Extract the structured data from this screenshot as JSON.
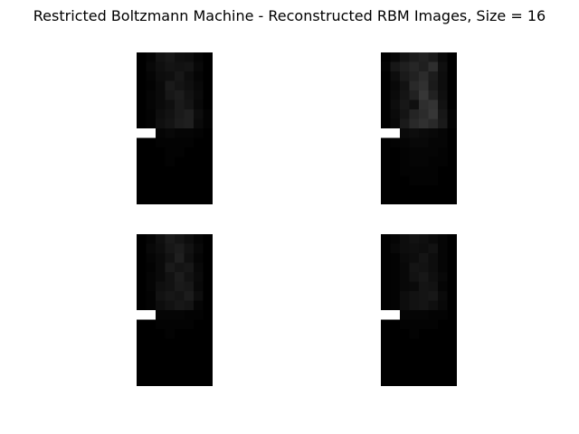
{
  "chart_data": {
    "type": "heatmap",
    "title": "Restricted Boltzmann Machine - Reconstructed RBM Images, Size = 16",
    "colormap": "gray",
    "value_range": [
      0,
      1
    ],
    "grid_shape": [
      16,
      8
    ],
    "images": [
      {
        "values": [
          [
            0.0,
            0.02,
            0.07,
            0.09,
            0.06,
            0.05,
            0.02,
            0.0
          ],
          [
            0.0,
            0.03,
            0.06,
            0.08,
            0.07,
            0.08,
            0.03,
            0.0
          ],
          [
            0.0,
            0.02,
            0.05,
            0.06,
            0.09,
            0.05,
            0.02,
            0.0
          ],
          [
            0.0,
            0.01,
            0.04,
            0.1,
            0.08,
            0.06,
            0.03,
            0.0
          ],
          [
            0.0,
            0.02,
            0.04,
            0.09,
            0.11,
            0.07,
            0.04,
            0.0
          ],
          [
            0.0,
            0.02,
            0.04,
            0.06,
            0.1,
            0.08,
            0.03,
            0.0
          ],
          [
            0.0,
            0.01,
            0.05,
            0.07,
            0.1,
            0.12,
            0.05,
            0.01
          ],
          [
            0.0,
            0.01,
            0.06,
            0.08,
            0.11,
            0.12,
            0.04,
            0.01
          ],
          [
            1.0,
            1.0,
            0.02,
            0.03,
            0.02,
            0.02,
            0.01,
            0.0
          ],
          [
            0.0,
            0.0,
            0.01,
            0.01,
            0.01,
            0.01,
            0.0,
            0.0
          ],
          [
            0.0,
            0.0,
            0.0,
            0.01,
            0.01,
            0.0,
            0.0,
            0.0
          ],
          [
            0.0,
            0.0,
            0.0,
            0.01,
            0.0,
            0.0,
            0.0,
            0.0
          ],
          [
            0.0,
            0.0,
            0.0,
            0.0,
            0.0,
            0.0,
            0.0,
            0.0
          ],
          [
            0.0,
            0.0,
            0.0,
            0.0,
            0.0,
            0.0,
            0.0,
            0.0
          ],
          [
            0.0,
            0.0,
            0.0,
            0.0,
            0.0,
            0.0,
            0.0,
            0.0
          ],
          [
            0.0,
            0.0,
            0.0,
            0.0,
            0.0,
            0.0,
            0.0,
            0.0
          ]
        ]
      },
      {
        "values": [
          [
            0.0,
            0.03,
            0.08,
            0.11,
            0.13,
            0.1,
            0.04,
            0.0
          ],
          [
            0.01,
            0.09,
            0.12,
            0.15,
            0.12,
            0.18,
            0.06,
            0.0
          ],
          [
            0.0,
            0.05,
            0.1,
            0.13,
            0.17,
            0.11,
            0.05,
            0.0
          ],
          [
            0.0,
            0.03,
            0.07,
            0.16,
            0.19,
            0.1,
            0.05,
            0.0
          ],
          [
            0.0,
            0.04,
            0.08,
            0.13,
            0.21,
            0.13,
            0.06,
            0.0
          ],
          [
            0.0,
            0.05,
            0.09,
            0.06,
            0.18,
            0.2,
            0.07,
            0.0
          ],
          [
            0.0,
            0.04,
            0.08,
            0.14,
            0.17,
            0.21,
            0.09,
            0.01
          ],
          [
            0.0,
            0.03,
            0.1,
            0.16,
            0.19,
            0.16,
            0.1,
            0.01
          ],
          [
            1.0,
            1.0,
            0.04,
            0.05,
            0.04,
            0.03,
            0.02,
            0.0
          ],
          [
            0.0,
            0.01,
            0.02,
            0.03,
            0.03,
            0.02,
            0.02,
            0.0
          ],
          [
            0.0,
            0.0,
            0.01,
            0.02,
            0.02,
            0.02,
            0.01,
            0.0
          ],
          [
            0.0,
            0.0,
            0.01,
            0.02,
            0.02,
            0.01,
            0.01,
            0.0
          ],
          [
            0.0,
            0.0,
            0.01,
            0.01,
            0.01,
            0.01,
            0.0,
            0.0
          ],
          [
            0.0,
            0.0,
            0.0,
            0.01,
            0.01,
            0.01,
            0.0,
            0.0
          ],
          [
            0.0,
            0.0,
            0.0,
            0.0,
            0.0,
            0.0,
            0.0,
            0.0
          ],
          [
            0.0,
            0.0,
            0.0,
            0.0,
            0.0,
            0.0,
            0.0,
            0.0
          ]
        ]
      },
      {
        "values": [
          [
            0.0,
            0.02,
            0.06,
            0.1,
            0.08,
            0.05,
            0.02,
            0.0
          ],
          [
            0.0,
            0.03,
            0.05,
            0.09,
            0.11,
            0.07,
            0.03,
            0.0
          ],
          [
            0.0,
            0.02,
            0.04,
            0.07,
            0.12,
            0.06,
            0.02,
            0.0
          ],
          [
            0.0,
            0.01,
            0.04,
            0.1,
            0.08,
            0.09,
            0.03,
            0.0
          ],
          [
            0.0,
            0.02,
            0.04,
            0.07,
            0.11,
            0.07,
            0.04,
            0.0
          ],
          [
            0.0,
            0.02,
            0.06,
            0.07,
            0.1,
            0.09,
            0.03,
            0.0
          ],
          [
            0.0,
            0.01,
            0.07,
            0.09,
            0.08,
            0.11,
            0.05,
            0.0
          ],
          [
            0.0,
            0.01,
            0.05,
            0.07,
            0.09,
            0.08,
            0.02,
            0.0
          ],
          [
            1.0,
            1.0,
            0.02,
            0.02,
            0.02,
            0.01,
            0.01,
            0.0
          ],
          [
            0.0,
            0.0,
            0.01,
            0.01,
            0.01,
            0.01,
            0.0,
            0.0
          ],
          [
            0.0,
            0.0,
            0.0,
            0.01,
            0.0,
            0.0,
            0.0,
            0.0
          ],
          [
            0.0,
            0.0,
            0.0,
            0.0,
            0.0,
            0.0,
            0.0,
            0.0
          ],
          [
            0.0,
            0.0,
            0.0,
            0.0,
            0.0,
            0.0,
            0.0,
            0.0
          ],
          [
            0.0,
            0.0,
            0.0,
            0.0,
            0.0,
            0.0,
            0.0,
            0.0
          ],
          [
            0.0,
            0.0,
            0.0,
            0.0,
            0.0,
            0.0,
            0.0,
            0.0
          ],
          [
            0.0,
            0.0,
            0.0,
            0.0,
            0.0,
            0.0,
            0.0,
            0.0
          ]
        ]
      },
      {
        "values": [
          [
            0.0,
            0.02,
            0.05,
            0.07,
            0.06,
            0.04,
            0.02,
            0.0
          ],
          [
            0.0,
            0.03,
            0.05,
            0.06,
            0.05,
            0.07,
            0.02,
            0.0
          ],
          [
            0.0,
            0.01,
            0.04,
            0.05,
            0.08,
            0.05,
            0.02,
            0.0
          ],
          [
            0.0,
            0.01,
            0.03,
            0.08,
            0.07,
            0.05,
            0.02,
            0.0
          ],
          [
            0.0,
            0.01,
            0.03,
            0.07,
            0.09,
            0.06,
            0.03,
            0.0
          ],
          [
            0.0,
            0.01,
            0.03,
            0.04,
            0.08,
            0.07,
            0.02,
            0.0
          ],
          [
            0.0,
            0.01,
            0.05,
            0.07,
            0.08,
            0.09,
            0.04,
            0.0
          ],
          [
            0.0,
            0.01,
            0.05,
            0.07,
            0.08,
            0.06,
            0.03,
            0.0
          ],
          [
            1.0,
            1.0,
            0.02,
            0.02,
            0.02,
            0.01,
            0.01,
            0.0
          ],
          [
            0.0,
            0.0,
            0.01,
            0.01,
            0.01,
            0.01,
            0.0,
            0.0
          ],
          [
            0.0,
            0.0,
            0.0,
            0.01,
            0.0,
            0.0,
            0.0,
            0.0
          ],
          [
            0.0,
            0.0,
            0.0,
            0.0,
            0.0,
            0.0,
            0.0,
            0.0
          ],
          [
            0.0,
            0.0,
            0.0,
            0.0,
            0.0,
            0.0,
            0.0,
            0.0
          ],
          [
            0.0,
            0.0,
            0.0,
            0.0,
            0.0,
            0.0,
            0.0,
            0.0
          ],
          [
            0.0,
            0.0,
            0.0,
            0.0,
            0.0,
            0.0,
            0.0,
            0.0
          ],
          [
            0.0,
            0.0,
            0.0,
            0.0,
            0.0,
            0.0,
            0.0,
            0.0
          ]
        ]
      }
    ]
  }
}
